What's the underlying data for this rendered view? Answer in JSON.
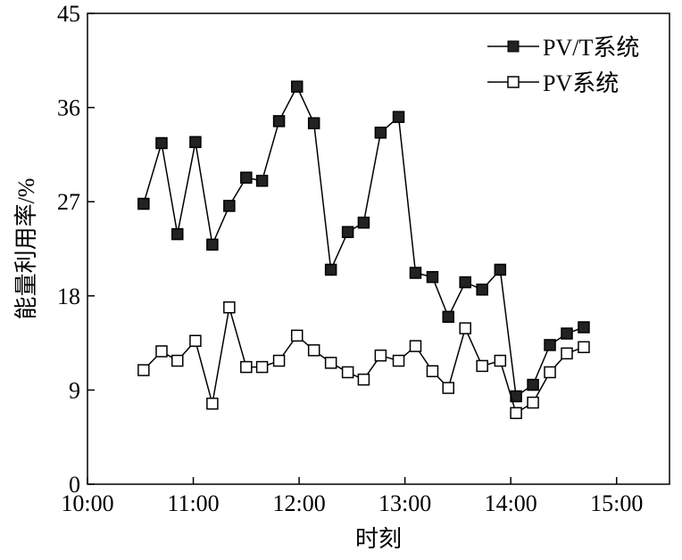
{
  "chart_data": {
    "type": "line",
    "title": "",
    "xlabel": "时刻",
    "ylabel": "能量利用率/%",
    "xlim": [
      10,
      15.5
    ],
    "ylim": [
      0,
      45
    ],
    "xticks": [
      10,
      11,
      12,
      13,
      14,
      15
    ],
    "xtick_labels": [
      "10:00",
      "11:00",
      "12:00",
      "13:00",
      "14:00",
      "15:00"
    ],
    "yticks": [
      0,
      9,
      18,
      27,
      36,
      45
    ],
    "ytick_labels": [
      "0",
      "9",
      "18",
      "27",
      "36",
      "45"
    ],
    "grid": false,
    "legend_position": "top-right",
    "x": [
      10.53,
      10.7,
      10.85,
      11.02,
      11.18,
      11.34,
      11.5,
      11.65,
      11.81,
      11.98,
      12.14,
      12.3,
      12.46,
      12.61,
      12.77,
      12.94,
      13.1,
      13.26,
      13.41,
      13.57,
      13.73,
      13.9,
      14.05,
      14.21,
      14.37,
      14.53,
      14.69
    ],
    "series": [
      {
        "name": "PV/T系统",
        "marker": "filled-square",
        "values": [
          26.8,
          32.6,
          23.9,
          32.7,
          22.9,
          26.6,
          29.3,
          29.0,
          34.7,
          38.0,
          34.5,
          20.5,
          24.1,
          25.0,
          33.6,
          35.1,
          20.2,
          19.8,
          16.0,
          19.3,
          18.6,
          20.5,
          8.4,
          9.5,
          13.3,
          14.4,
          15.0
        ]
      },
      {
        "name": "PV系统",
        "marker": "open-square",
        "values": [
          10.9,
          12.7,
          11.8,
          13.7,
          7.7,
          16.9,
          11.2,
          11.2,
          11.8,
          14.2,
          12.8,
          11.6,
          10.7,
          10.0,
          12.3,
          11.8,
          13.2,
          10.8,
          9.2,
          14.9,
          11.3,
          11.8,
          6.8,
          7.8,
          10.7,
          12.5,
          13.1
        ]
      }
    ]
  }
}
